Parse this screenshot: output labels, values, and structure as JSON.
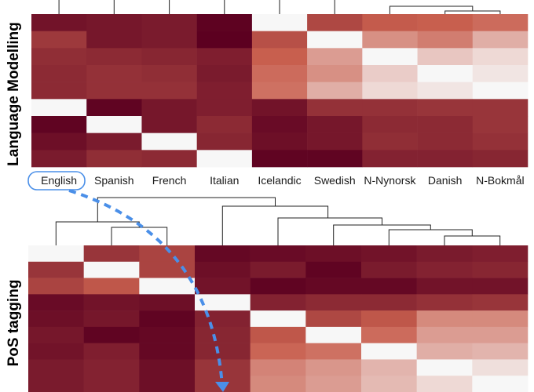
{
  "chart_data": [
    {
      "type": "heatmap",
      "panel": "top",
      "ylabel": "Language Modelling",
      "x_categories": [
        "English",
        "Spanish",
        "French",
        "Italian",
        "Icelandic",
        "Swedish",
        "N-Nynorsk",
        "Danish",
        "N-Bokmål"
      ],
      "highlighted_label": "English",
      "values": [
        [
          0.9,
          0.88,
          0.86,
          0.99,
          0.0,
          0.62,
          0.52,
          0.5,
          0.46
        ],
        [
          0.7,
          0.88,
          0.86,
          1.0,
          0.58,
          0.0,
          0.34,
          0.4,
          0.24
        ],
        [
          0.76,
          0.78,
          0.8,
          0.84,
          0.5,
          0.3,
          0.0,
          0.16,
          0.1
        ],
        [
          0.78,
          0.74,
          0.76,
          0.86,
          0.46,
          0.34,
          0.14,
          0.0,
          0.06
        ],
        [
          0.78,
          0.74,
          0.74,
          0.84,
          0.44,
          0.24,
          0.1,
          0.06,
          0.0
        ],
        [
          0.0,
          0.98,
          0.88,
          0.84,
          0.9,
          0.74,
          0.74,
          0.72,
          0.72
        ],
        [
          0.98,
          0.0,
          0.88,
          0.78,
          0.94,
          0.88,
          0.78,
          0.78,
          0.72
        ],
        [
          0.92,
          0.86,
          0.0,
          0.8,
          0.92,
          0.88,
          0.76,
          0.78,
          0.74
        ],
        [
          0.86,
          0.76,
          0.78,
          0.0,
          0.98,
          0.98,
          0.82,
          0.82,
          0.8
        ]
      ]
    },
    {
      "type": "heatmap",
      "panel": "bottom",
      "ylabel": "PoS tagging",
      "values": [
        [
          0.0,
          0.72,
          0.64,
          0.96,
          0.94,
          0.92,
          0.9,
          0.86,
          0.84
        ],
        [
          0.72,
          0.0,
          0.64,
          0.92,
          0.86,
          0.98,
          0.86,
          0.82,
          0.8
        ],
        [
          0.64,
          0.54,
          0.0,
          0.9,
          0.98,
          0.96,
          0.96,
          0.9,
          0.9
        ],
        [
          0.94,
          0.9,
          0.92,
          0.0,
          0.82,
          0.78,
          0.78,
          0.74,
          0.72
        ],
        [
          0.92,
          0.88,
          0.98,
          0.82,
          0.0,
          0.62,
          0.54,
          0.36,
          0.36
        ],
        [
          0.88,
          0.98,
          0.96,
          0.8,
          0.54,
          0.0,
          0.46,
          0.3,
          0.3
        ],
        [
          0.9,
          0.84,
          0.96,
          0.8,
          0.48,
          0.44,
          0.0,
          0.24,
          0.22
        ],
        [
          0.86,
          0.82,
          0.92,
          0.72,
          0.38,
          0.32,
          0.22,
          0.0,
          0.08
        ],
        [
          0.86,
          0.82,
          0.92,
          0.72,
          0.36,
          0.3,
          0.2,
          0.1,
          0.0
        ]
      ]
    }
  ],
  "colors": {
    "low": "#f7f7f7",
    "mid": "#c85f4e",
    "high": "#5c0020",
    "highlight_outline": "#4a8fe8",
    "arrow": "#4a8fe8"
  }
}
